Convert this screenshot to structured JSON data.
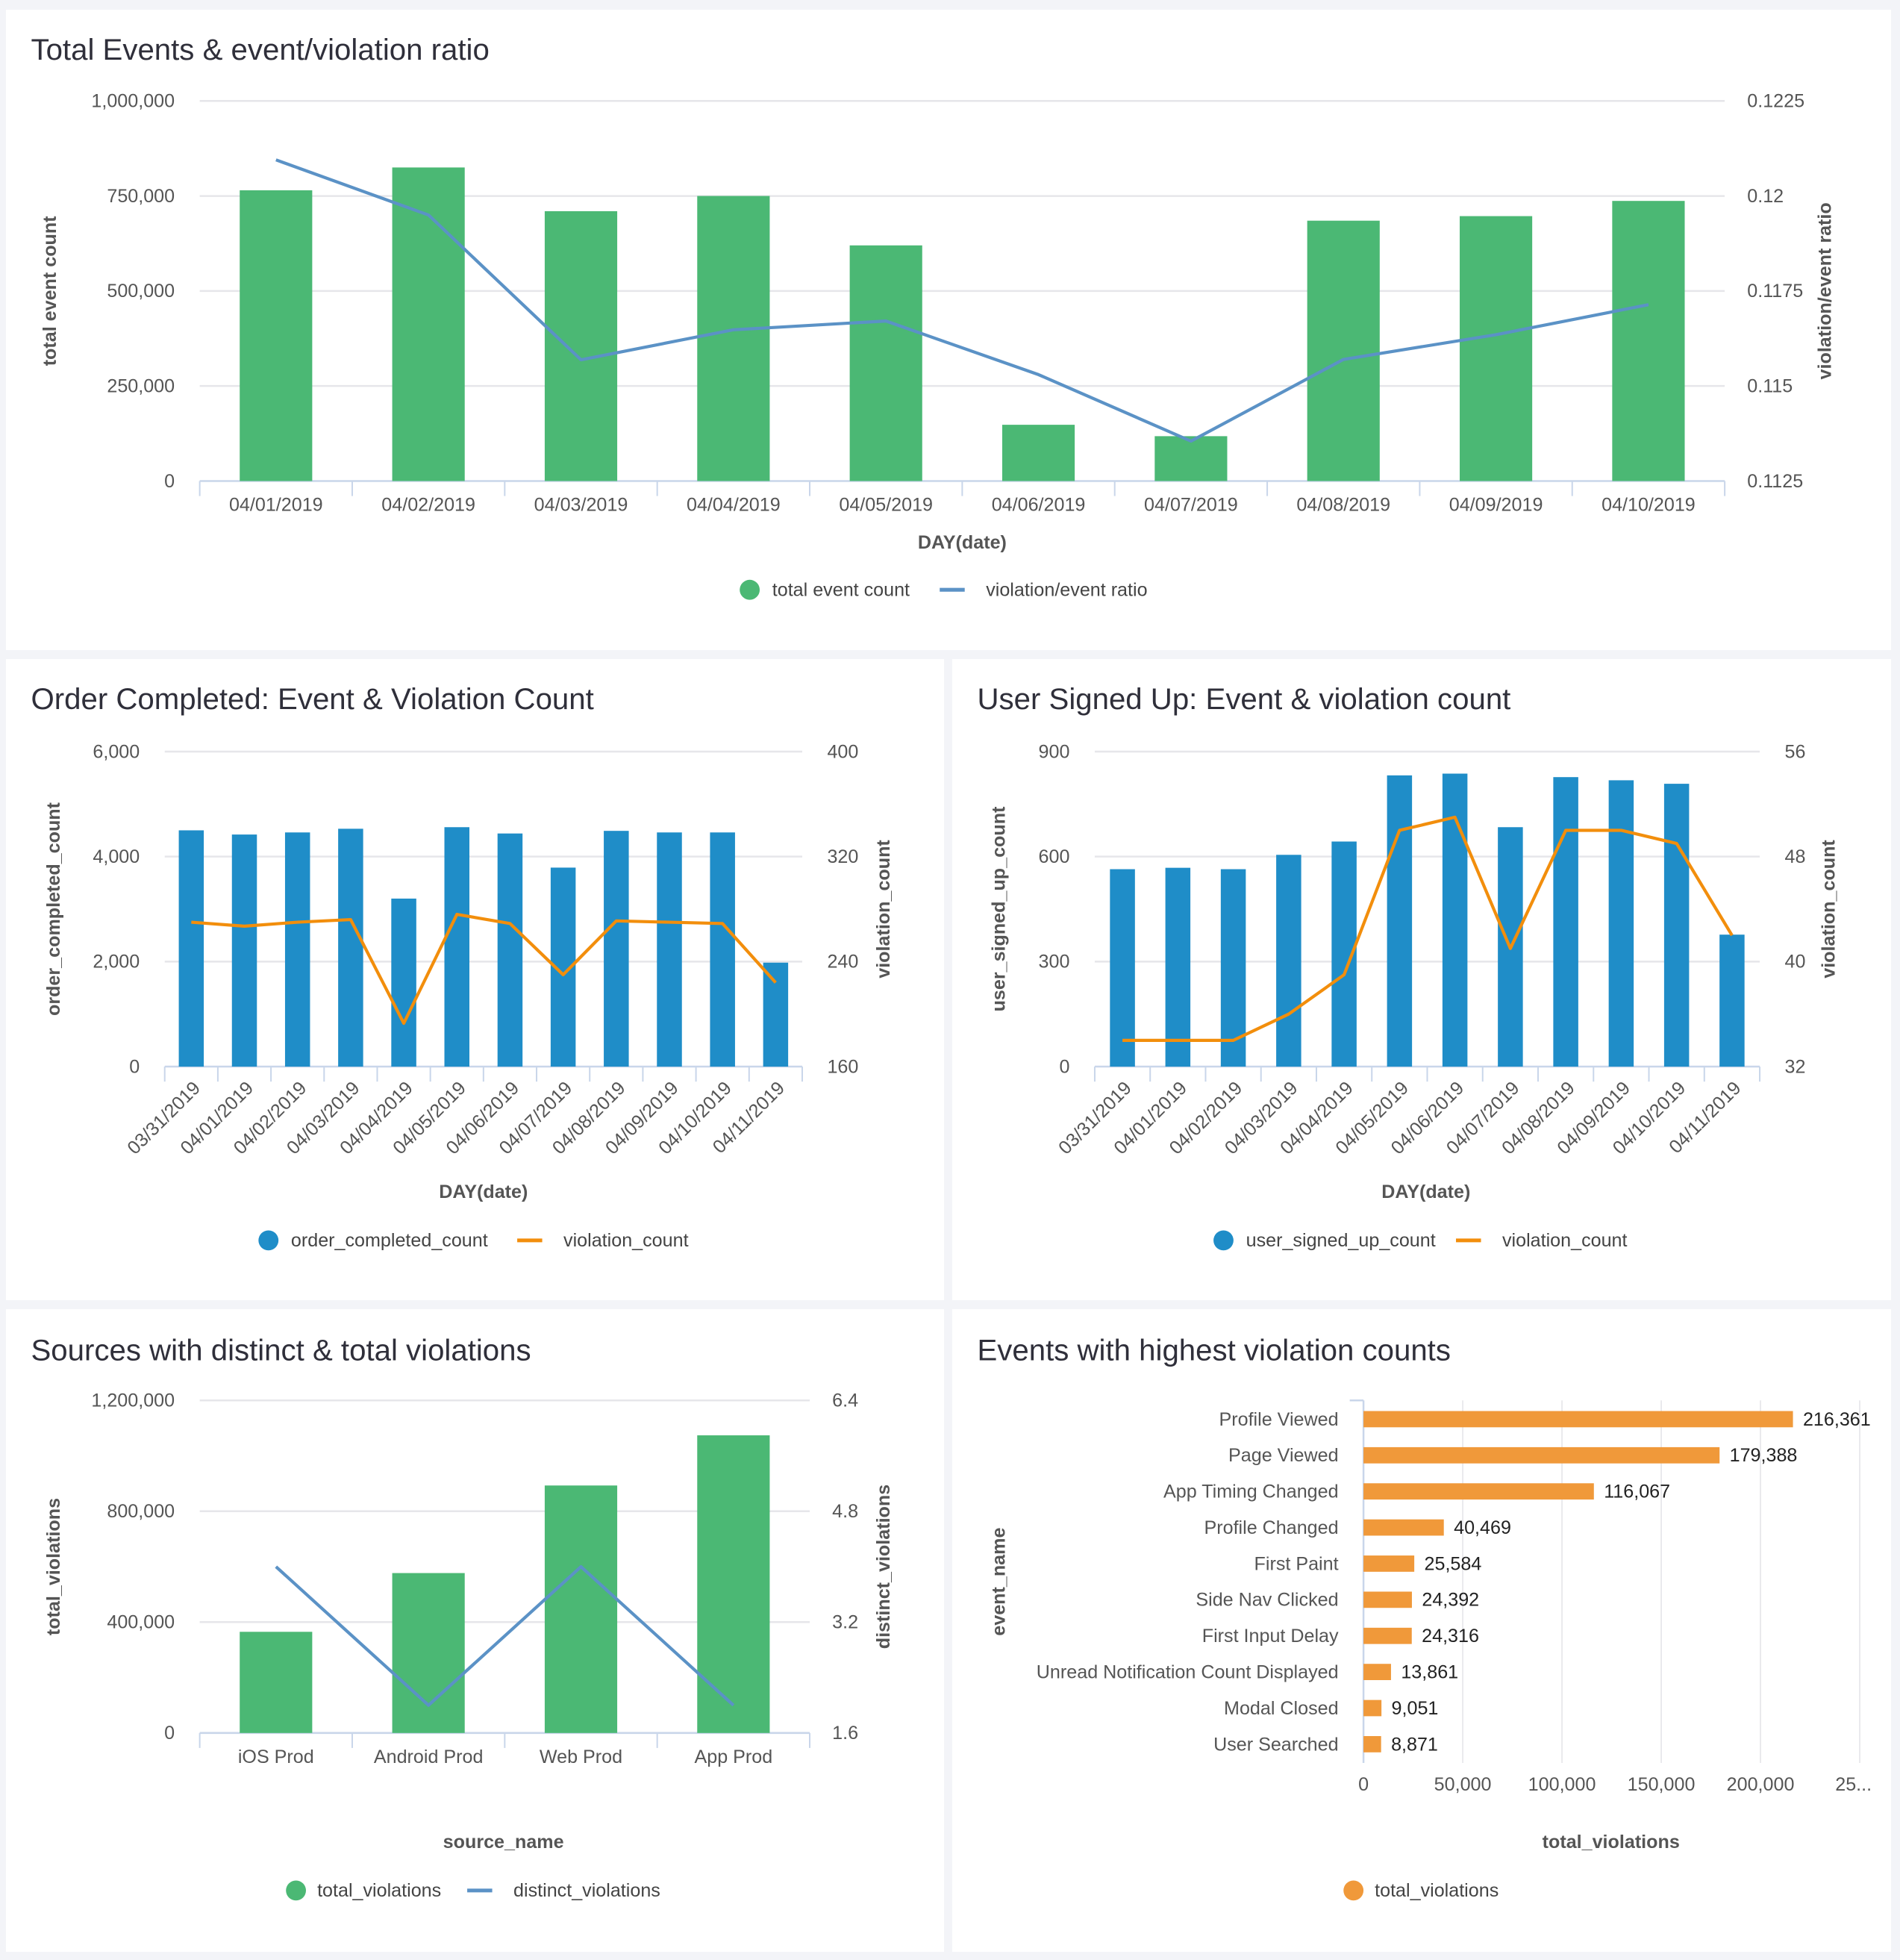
{
  "colors": {
    "green": "#4bb874",
    "steel_blue": "#5b92c6",
    "blue": "#1f8dc8",
    "orange": "#f28e0c",
    "orange_bar": "#f0993a",
    "grid": "#e6e6ea"
  },
  "chart_data": [
    {
      "type": "bar+line",
      "title": "Total Events & event/violation ratio",
      "categories": [
        "04/01/2019",
        "04/02/2019",
        "04/03/2019",
        "04/04/2019",
        "04/05/2019",
        "04/06/2019",
        "04/07/2019",
        "04/08/2019",
        "04/09/2019",
        "04/10/2019"
      ],
      "xlabel": "DAY(date)",
      "ylabel": "total event count",
      "y2label": "violation/event ratio",
      "ylim": [
        0,
        1000000
      ],
      "y2lim": [
        0.1125,
        0.1225
      ],
      "yticks": [
        "0",
        "250,000",
        "500,000",
        "750,000",
        "1,000,000"
      ],
      "y2ticks": [
        "0.1125",
        "0.115",
        "0.1175",
        "0.12",
        "0.1225"
      ],
      "grid": true,
      "legend_position": "bottom",
      "series": [
        {
          "name": "total event count",
          "kind": "bar",
          "axis": "left",
          "color": "#4bb874",
          "values": [
            765000,
            825000,
            710000,
            750000,
            620000,
            148000,
            118000,
            685000,
            697000,
            737000
          ]
        },
        {
          "name": "violation/event ratio",
          "kind": "line",
          "axis": "right",
          "color": "#5b92c6",
          "values": [
            0.12095,
            0.1195,
            0.11569,
            0.11648,
            0.11671,
            0.1153,
            0.11355,
            0.1157,
            0.11635,
            0.11714
          ]
        }
      ]
    },
    {
      "type": "bar+line",
      "title": "Order Completed: Event & Violation Count",
      "categories": [
        "03/31/2019",
        "04/01/2019",
        "04/02/2019",
        "04/03/2019",
        "04/04/2019",
        "04/05/2019",
        "04/06/2019",
        "04/07/2019",
        "04/08/2019",
        "04/09/2019",
        "04/10/2019",
        "04/11/2019"
      ],
      "xlabel": "DAY(date)",
      "ylabel": "order_completed_count",
      "y2label": "violation_count",
      "ylim": [
        0,
        6000
      ],
      "y2lim": [
        160,
        400
      ],
      "yticks": [
        "0",
        "2,000",
        "4,000",
        "6,000"
      ],
      "y2ticks": [
        "160",
        "240",
        "320",
        "400"
      ],
      "grid": true,
      "legend_position": "bottom",
      "series": [
        {
          "name": "order_completed_count",
          "kind": "bar",
          "axis": "left",
          "color": "#1f8dc8",
          "values": [
            4500,
            4420,
            4460,
            4530,
            3200,
            4560,
            4440,
            3790,
            4490,
            4460,
            4460,
            1980
          ]
        },
        {
          "name": "violation_count",
          "kind": "line",
          "axis": "right",
          "color": "#f28e0c",
          "values": [
            270,
            267,
            270,
            272,
            193,
            276,
            269,
            230,
            271,
            270,
            269,
            224
          ]
        }
      ]
    },
    {
      "type": "bar+line",
      "title": "User Signed Up: Event & violation count",
      "categories": [
        "03/31/2019",
        "04/01/2019",
        "04/02/2019",
        "04/03/2019",
        "04/04/2019",
        "04/05/2019",
        "04/06/2019",
        "04/07/2019",
        "04/08/2019",
        "04/09/2019",
        "04/10/2019",
        "04/11/2019"
      ],
      "xlabel": "DAY(date)",
      "ylabel": "user_signed_up_count",
      "y2label": "violation_count",
      "ylim": [
        0,
        900
      ],
      "y2lim": [
        32,
        56
      ],
      "yticks": [
        "0",
        "300",
        "600",
        "900"
      ],
      "y2ticks": [
        "32",
        "40",
        "48",
        "56"
      ],
      "grid": true,
      "legend_position": "bottom",
      "series": [
        {
          "name": "user_signed_up_count",
          "kind": "bar",
          "axis": "left",
          "color": "#1f8dc8",
          "values": [
            564,
            568,
            564,
            605,
            643,
            832,
            837,
            684,
            827,
            818,
            808,
            377
          ]
        },
        {
          "name": "violation_count",
          "kind": "line",
          "axis": "right",
          "color": "#f28e0c",
          "values": [
            34,
            34,
            34,
            36,
            39,
            50,
            51,
            41,
            50,
            50,
            49,
            42
          ]
        }
      ]
    },
    {
      "type": "bar+line",
      "title": "Sources with distinct & total violations",
      "categories": [
        "iOS Prod",
        "Android Prod",
        "Web Prod",
        "App Prod"
      ],
      "xlabel": "source_name",
      "ylabel": "total_violations",
      "y2label": "distinct_violations",
      "ylim": [
        0,
        1200000
      ],
      "y2lim": [
        1.6,
        6.4
      ],
      "yticks": [
        "0",
        "400,000",
        "800,000",
        "1,200,000"
      ],
      "y2ticks": [
        "1.6",
        "3.2",
        "4.8",
        "6.4"
      ],
      "grid": true,
      "legend_position": "bottom",
      "series": [
        {
          "name": "total_violations",
          "kind": "bar",
          "axis": "left",
          "color": "#4bb874",
          "values": [
            365000,
            577000,
            893000,
            1074000
          ]
        },
        {
          "name": "distinct_violations",
          "kind": "line",
          "axis": "right",
          "color": "#5b92c6",
          "values": [
            4,
            2,
            4,
            2
          ]
        }
      ]
    },
    {
      "type": "horizontal-bar",
      "title": "Events with highest violation counts",
      "categories": [
        "Profile Viewed",
        "Page Viewed",
        "App Timing Changed",
        "Profile Changed",
        "First Paint",
        "Side Nav Clicked",
        "First Input Delay",
        "Unread Notification Count Displayed",
        "Modal Closed",
        "User Searched"
      ],
      "xlabel": "total_violations",
      "ylabel": "event_name",
      "xlim": [
        0,
        250000
      ],
      "xticks": [
        "0",
        "50,000",
        "100,000",
        "150,000",
        "200,000",
        "25..."
      ],
      "grid": true,
      "legend_position": "bottom",
      "series": [
        {
          "name": "total_violations",
          "kind": "hbar",
          "color": "#f0993a",
          "values": [
            216361,
            179388,
            116067,
            40469,
            25584,
            24392,
            24316,
            13861,
            9051,
            8871
          ],
          "labels": [
            "216,361",
            "179,388",
            "116,067",
            "40,469",
            "25,584",
            "24,392",
            "24,316",
            "13,861",
            "9,051",
            "8,871"
          ]
        }
      ]
    }
  ]
}
